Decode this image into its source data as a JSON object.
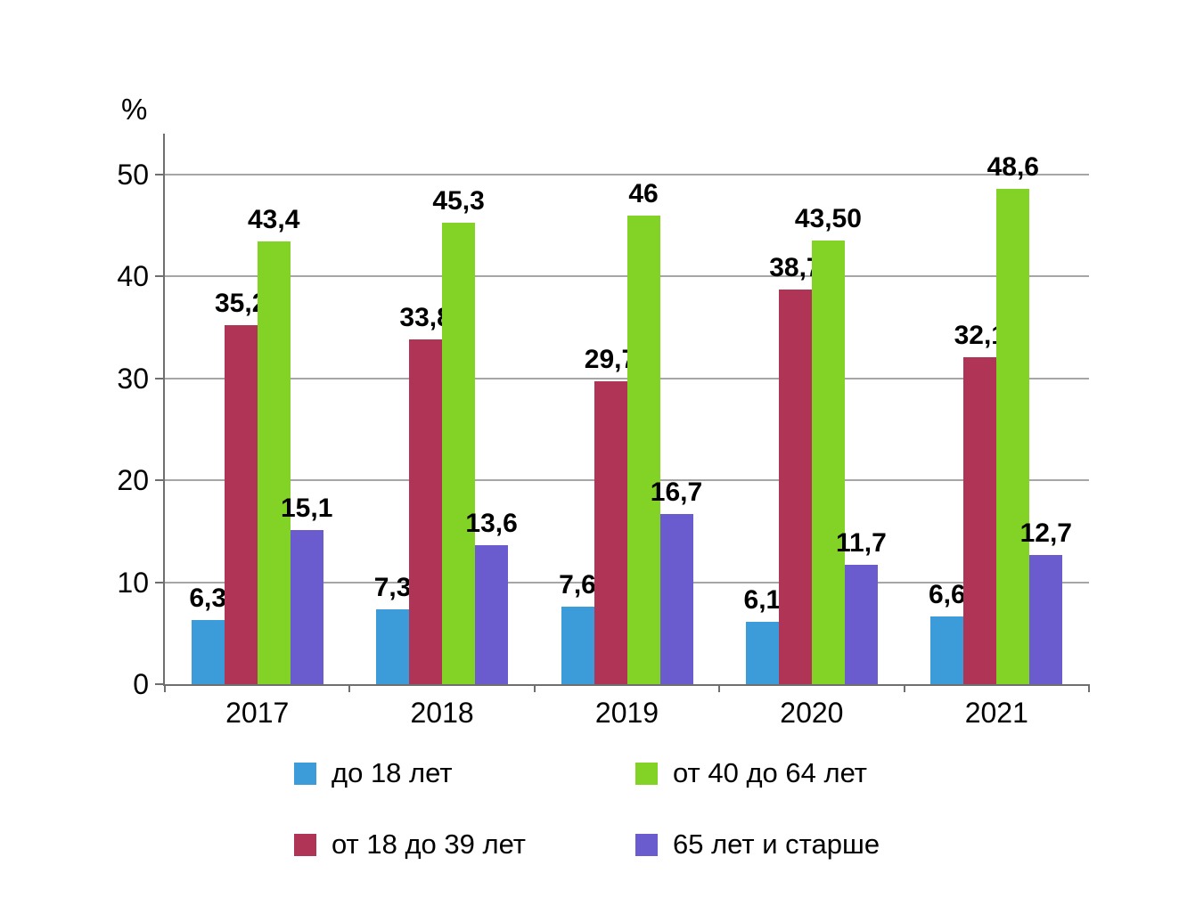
{
  "chart_data": {
    "type": "bar",
    "title": "",
    "xlabel": "",
    "ylabel": "%",
    "categories": [
      "2017",
      "2018",
      "2019",
      "2020",
      "2021"
    ],
    "series": [
      {
        "name": "до 18 лет",
        "color": "#3C9BD9",
        "values": [
          6.3,
          7.3,
          7.6,
          6.1,
          6.6
        ],
        "labels": [
          "6,3",
          "7,3",
          "7,6",
          "6,1",
          "6,6"
        ]
      },
      {
        "name": "от 18 до 39 лет",
        "color": "#B03455",
        "values": [
          35.2,
          33.8,
          29.7,
          38.7,
          32.1
        ],
        "labels": [
          "35,2",
          "33,8",
          "29,7",
          "38,7",
          "32,1"
        ]
      },
      {
        "name": "от 40 до 64 лет",
        "color": "#83D327",
        "values": [
          43.4,
          45.3,
          46,
          43.5,
          48.6
        ],
        "labels": [
          "43,4",
          "45,3",
          "46",
          "43,50",
          "48,6"
        ]
      },
      {
        "name": "65 лет и старше",
        "color": "#6A5BCF",
        "values": [
          15.1,
          13.6,
          16.7,
          11.7,
          12.7
        ],
        "labels": [
          "15,1",
          "13,6",
          "16,7",
          "11,7",
          "12,7"
        ]
      }
    ],
    "y_ticks": [
      0,
      10,
      20,
      30,
      40,
      50
    ],
    "ylim": [
      0,
      54
    ],
    "grid": true,
    "legend_position": "bottom",
    "legend_order": [
      0,
      2,
      1,
      3
    ]
  }
}
